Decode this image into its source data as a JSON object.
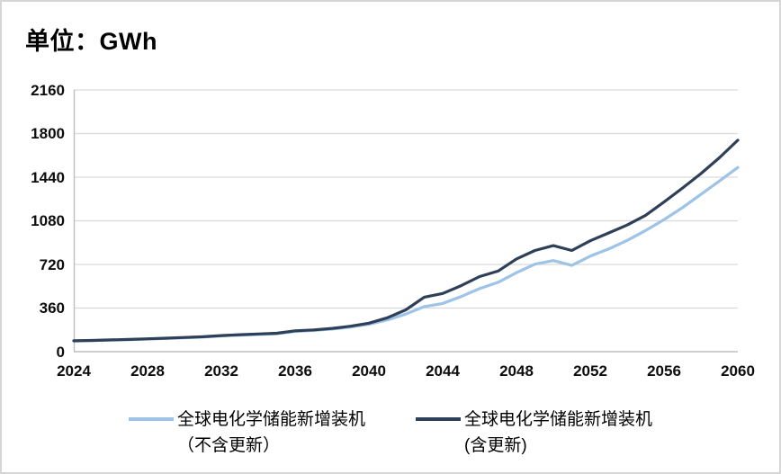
{
  "title": "单位：GWh",
  "colors": {
    "series_excl": "#9DC3E6",
    "series_incl": "#2E4057",
    "gridline": "#D9D9D9",
    "axis": "#BFBFBF",
    "text": "#000000",
    "border": "#D6D6D6"
  },
  "chart_data": {
    "type": "line",
    "title": "单位：GWh",
    "xlabel": "",
    "ylabel": "GWh",
    "x": [
      2024,
      2025,
      2026,
      2027,
      2028,
      2029,
      2030,
      2031,
      2032,
      2033,
      2034,
      2035,
      2036,
      2037,
      2038,
      2039,
      2040,
      2041,
      2042,
      2043,
      2044,
      2045,
      2046,
      2047,
      2048,
      2049,
      2050,
      2051,
      2052,
      2053,
      2054,
      2055,
      2056,
      2057,
      2058,
      2059,
      2060
    ],
    "x_tick_labels": [
      "2024",
      "2028",
      "2032",
      "2036",
      "2040",
      "2044",
      "2048",
      "2052",
      "2056",
      "2060"
    ],
    "y_ticks": [
      0,
      360,
      720,
      1080,
      1440,
      1800,
      2160
    ],
    "ylim": [
      0,
      2160
    ],
    "xlim": [
      2024,
      2060
    ],
    "grid": "horizontal",
    "legend_position": "bottom",
    "series": [
      {
        "name": "全球电化学储能新增装机（不含更新）",
        "color": "#9DC3E6",
        "values": [
          88,
          91,
          95,
          99,
          104,
          109,
          114,
          120,
          130,
          136,
          142,
          148,
          167,
          175,
          186,
          203,
          226,
          262,
          310,
          372,
          398,
          455,
          520,
          572,
          652,
          722,
          752,
          712,
          788,
          848,
          918,
          1000,
          1090,
          1188,
          1298,
          1408,
          1520
        ]
      },
      {
        "name": "全球电化学储能新增装机(含更新)",
        "color": "#2E4057",
        "values": [
          90,
          93,
          97,
          101,
          106,
          111,
          117,
          123,
          133,
          140,
          146,
          152,
          172,
          180,
          192,
          210,
          235,
          280,
          345,
          450,
          480,
          545,
          620,
          665,
          765,
          835,
          875,
          835,
          915,
          980,
          1045,
          1125,
          1235,
          1350,
          1470,
          1600,
          1745
        ]
      }
    ]
  },
  "legend": {
    "items": [
      {
        "label_line1": "全球电化学储能新增装机",
        "label_line2": "（不含更新）",
        "color": "#9DC3E6"
      },
      {
        "label_line1": "全球电化学储能新增装机",
        "label_line2": "(含更新)",
        "color": "#2E4057"
      }
    ]
  }
}
